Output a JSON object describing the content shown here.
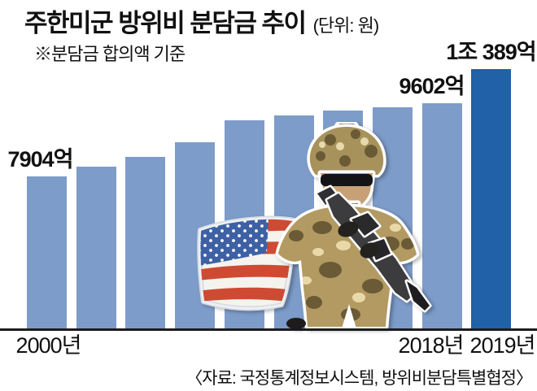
{
  "header": {
    "title": "주한미군 방위비 분담금 추이",
    "unit_note": "(단위: 원)",
    "subtitle": "※분담금 합의액 기준"
  },
  "source_note": "〈자료: 국정통계정보시스템, 방위비분담특별협정〉",
  "colors": {
    "bar": "#7d9cc9",
    "bar_highlight": "#2061a8",
    "axis": "#1c1c1e",
    "text": "#111111"
  },
  "icons": {
    "flag": "us-flag-illustration",
    "soldier": "soldier-illustration"
  },
  "chart_data": {
    "type": "bar",
    "title": "주한미군 방위비 분담금 추이",
    "unit": "억 원",
    "note": "※분담금 합의액 기준",
    "categories": [
      "2000년",
      "",
      "",
      "",
      "",
      "",
      "",
      "",
      "2018년",
      "2019년"
    ],
    "values": [
      7904,
      8125,
      8361,
      8695,
      9200,
      9320,
      9441,
      9507,
      9602,
      10389
    ],
    "value_labels": [
      "7904억",
      "",
      "",
      "",
      "",
      "",
      "",
      "",
      "9602억",
      "1조 389억"
    ],
    "highlight_index": 9,
    "ylim": [
      4357,
      10600
    ],
    "grid": false,
    "legend": false
  }
}
